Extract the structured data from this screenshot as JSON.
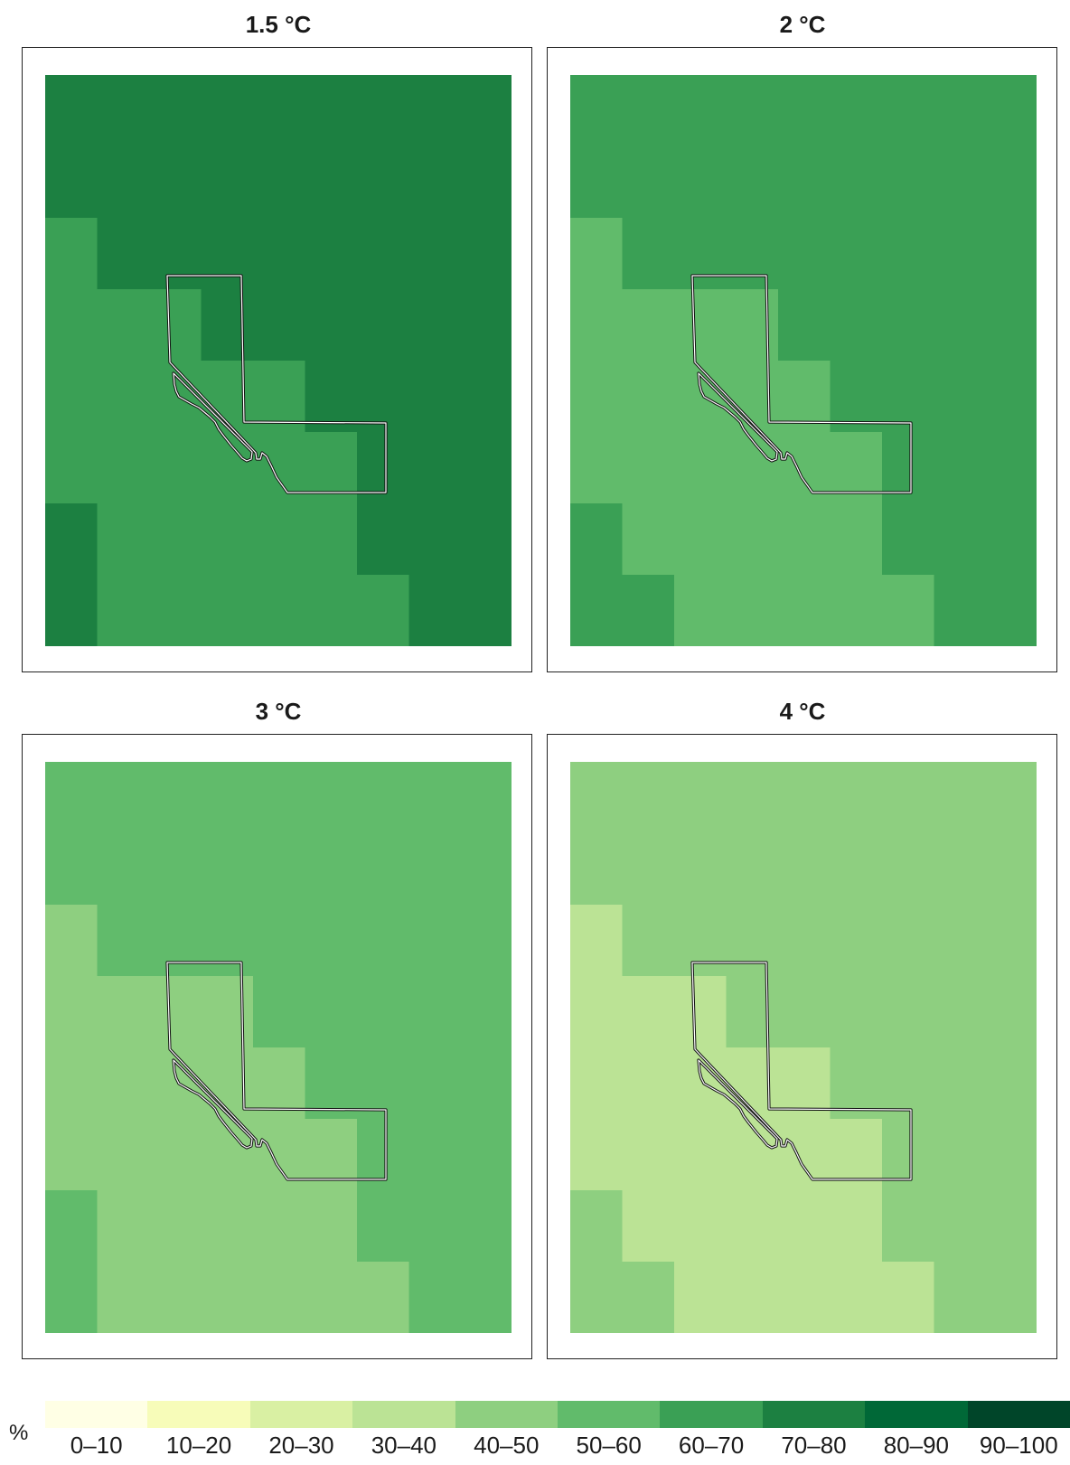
{
  "panels": [
    {
      "title": "1.5 °C",
      "cells": [
        [
          7,
          7,
          7,
          7,
          7,
          7,
          7,
          7,
          7
        ],
        [
          7,
          7,
          7,
          7,
          7,
          7,
          7,
          7,
          7
        ],
        [
          6,
          7,
          7,
          7,
          7,
          7,
          7,
          7,
          7
        ],
        [
          6,
          6,
          6,
          7,
          7,
          7,
          7,
          7,
          7
        ],
        [
          6,
          6,
          6,
          6,
          6,
          7,
          7,
          7,
          7
        ],
        [
          6,
          6,
          6,
          6,
          6,
          6,
          7,
          7,
          7
        ],
        [
          7,
          6,
          6,
          6,
          6,
          6,
          7,
          7,
          7
        ],
        [
          7,
          6,
          6,
          6,
          6,
          6,
          6,
          7,
          7
        ]
      ]
    },
    {
      "title": "2 °C",
      "cells": [
        [
          6,
          6,
          6,
          6,
          6,
          6,
          6,
          6,
          6
        ],
        [
          6,
          6,
          6,
          6,
          6,
          6,
          6,
          6,
          6
        ],
        [
          5,
          6,
          6,
          6,
          6,
          6,
          6,
          6,
          6
        ],
        [
          5,
          5,
          5,
          5,
          6,
          6,
          6,
          6,
          6
        ],
        [
          5,
          5,
          5,
          5,
          5,
          6,
          6,
          6,
          6
        ],
        [
          5,
          5,
          5,
          5,
          5,
          5,
          6,
          6,
          6
        ],
        [
          6,
          5,
          5,
          5,
          5,
          5,
          6,
          6,
          6
        ],
        [
          6,
          6,
          5,
          5,
          5,
          5,
          5,
          6,
          6
        ]
      ]
    },
    {
      "title": "3 °C",
      "cells": [
        [
          5,
          5,
          5,
          5,
          5,
          5,
          5,
          5,
          5
        ],
        [
          5,
          5,
          5,
          5,
          5,
          5,
          5,
          5,
          5
        ],
        [
          4,
          5,
          5,
          5,
          5,
          5,
          5,
          5,
          5
        ],
        [
          4,
          4,
          4,
          4,
          5,
          5,
          5,
          5,
          5
        ],
        [
          4,
          4,
          4,
          4,
          4,
          5,
          5,
          5,
          5
        ],
        [
          4,
          4,
          4,
          4,
          4,
          4,
          5,
          5,
          5
        ],
        [
          5,
          4,
          4,
          4,
          4,
          4,
          5,
          5,
          5
        ],
        [
          5,
          4,
          4,
          4,
          4,
          4,
          4,
          5,
          5
        ]
      ]
    },
    {
      "title": "4 °C",
      "cells": [
        [
          4,
          4,
          4,
          4,
          4,
          4,
          4,
          4,
          4
        ],
        [
          4,
          4,
          4,
          4,
          4,
          4,
          4,
          4,
          4
        ],
        [
          3,
          4,
          4,
          4,
          4,
          4,
          4,
          4,
          4
        ],
        [
          3,
          3,
          3,
          4,
          4,
          4,
          4,
          4,
          4
        ],
        [
          3,
          3,
          3,
          3,
          3,
          4,
          4,
          4,
          4
        ],
        [
          3,
          3,
          3,
          3,
          3,
          3,
          4,
          4,
          4
        ],
        [
          4,
          3,
          3,
          3,
          3,
          3,
          4,
          4,
          4
        ],
        [
          4,
          4,
          3,
          3,
          3,
          3,
          3,
          4,
          4
        ]
      ]
    }
  ],
  "legend": {
    "unit": "%",
    "classes": [
      {
        "label": "0–10",
        "color": "#ffffe5"
      },
      {
        "label": "10–20",
        "color": "#f7fcb9"
      },
      {
        "label": "20–30",
        "color": "#d9f0a3"
      },
      {
        "label": "30–40",
        "color": "#bbe395"
      },
      {
        "label": "40–50",
        "color": "#8ecf80"
      },
      {
        "label": "50–60",
        "color": "#61bb6b"
      },
      {
        "label": "60–70",
        "color": "#3aa055"
      },
      {
        "label": "70–80",
        "color": "#1c8041"
      },
      {
        "label": "80–90",
        "color": "#006837"
      },
      {
        "label": "90–100",
        "color": "#004529"
      }
    ]
  }
}
